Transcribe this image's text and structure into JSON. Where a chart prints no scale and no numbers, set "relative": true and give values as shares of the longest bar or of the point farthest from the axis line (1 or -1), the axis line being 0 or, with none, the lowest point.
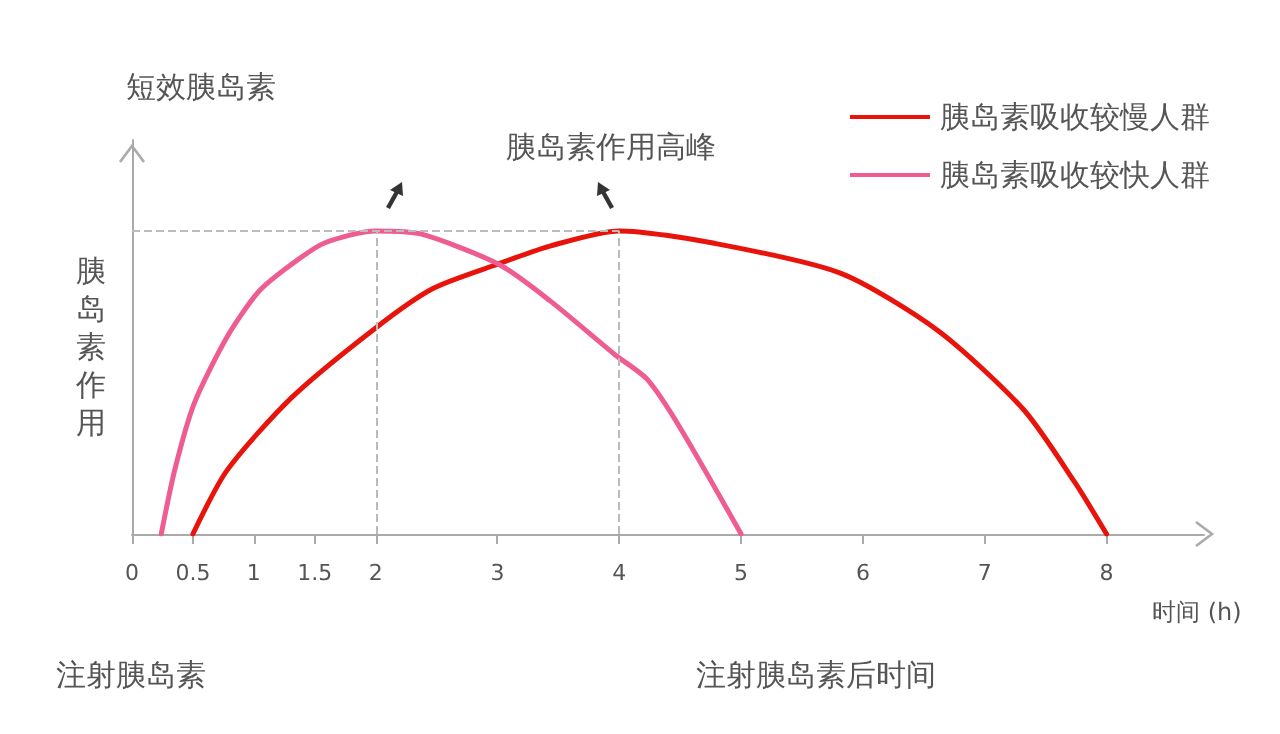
{
  "chart_data": {
    "type": "line",
    "relative": true,
    "xlabel": "时间 (h)",
    "ylabel": "胰岛素作用",
    "annotations": [
      "短效胰岛素",
      "胰岛素作用高峰",
      "注射胰岛素",
      "注射胰岛素后时间"
    ],
    "xlim": [
      0,
      8.8
    ],
    "xticks": [
      0,
      0.5,
      1,
      1.5,
      2,
      3,
      4,
      5,
      6,
      7,
      8
    ],
    "series": [
      {
        "name": "胰岛素吸收较慢人群",
        "color": "#e8140c",
        "x": [
          0.5,
          0.78,
          1.31,
          2,
          2.47,
          3,
          3.43,
          4,
          4.77,
          5.82,
          6.62,
          7.32,
          7.74,
          8
        ],
        "values": [
          0,
          0.21,
          0.45,
          0.68,
          0.81,
          0.89,
          0.95,
          1,
          0.96,
          0.86,
          0.67,
          0.41,
          0.17,
          0
        ]
      },
      {
        "name": "胰岛素吸收较快人群",
        "color": "#ee5c92",
        "x": [
          0.24,
          0.35,
          0.51,
          0.78,
          1.04,
          1.31,
          1.58,
          2,
          2.37,
          3.01,
          3.43,
          3.97,
          4.23,
          4.5,
          5
        ],
        "values": [
          0,
          0.21,
          0.43,
          0.65,
          0.8,
          0.89,
          0.96,
          1,
          0.99,
          0.89,
          0.77,
          0.59,
          0.51,
          0.35,
          0
        ]
      }
    ],
    "ref_lines": [
      {
        "axis": "x",
        "value": 2,
        "color": "#bbbbbb",
        "line_style": "dashed"
      },
      {
        "axis": "x",
        "value": 4,
        "color": "#bbbbbb",
        "line_style": "dashed"
      },
      {
        "axis": "y",
        "value": 1,
        "color": "#bbbbbb",
        "line_style": "dashed"
      }
    ],
    "legend": "top right",
    "grid": false,
    "marker": "none",
    "line_style": "solid"
  }
}
